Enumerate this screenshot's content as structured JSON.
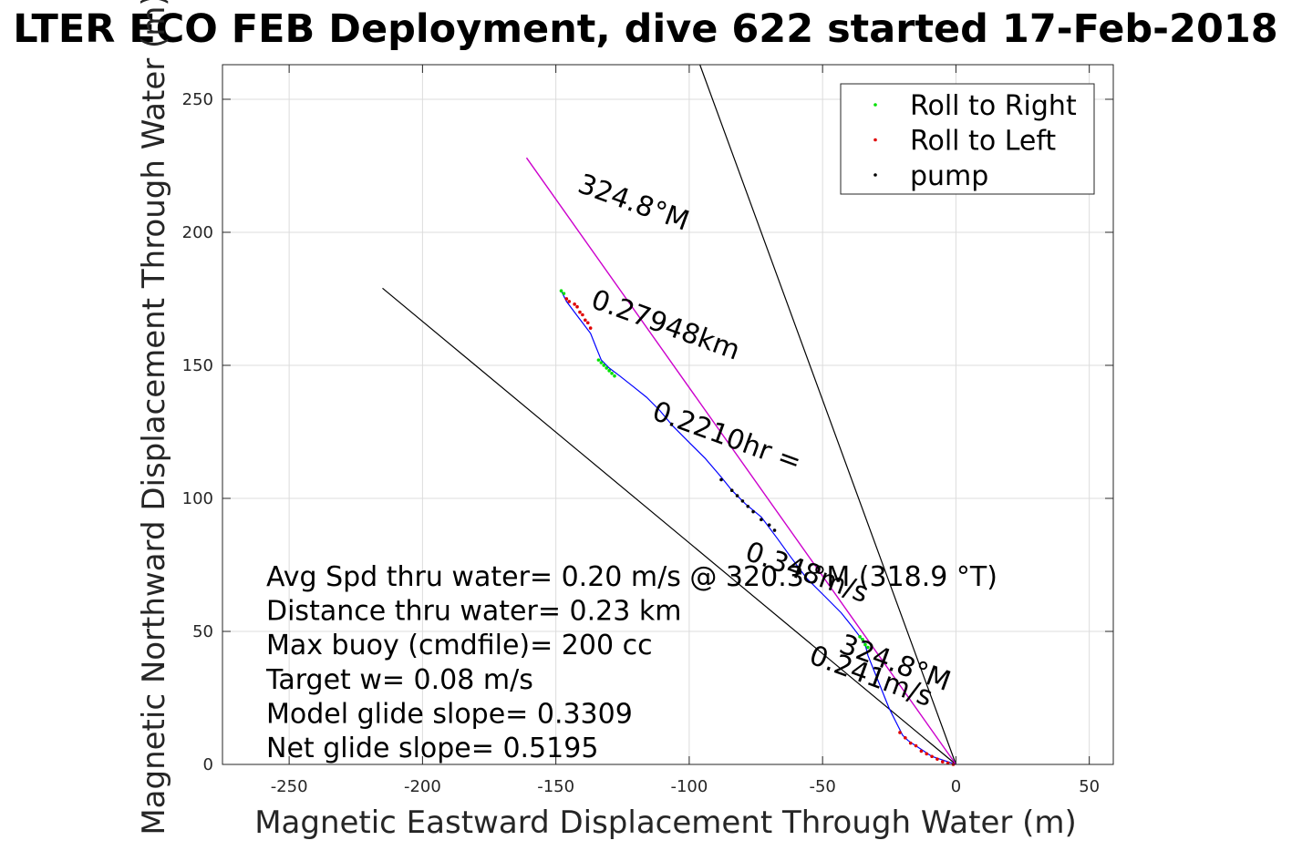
{
  "chart_data": {
    "type": "scatter",
    "title": "LTER ECO FEB Deployment, dive 622 started 17-Feb-2018",
    "xlabel": "Magnetic Eastward Displacement Through Water (m)",
    "ylabel": "Magnetic Northward Displacement Through Water (m)",
    "xlim": [
      -275,
      59
    ],
    "ylim": [
      0,
      263
    ],
    "xticks": [
      -250,
      -200,
      -150,
      -100,
      -50,
      0,
      50
    ],
    "yticks": [
      0,
      50,
      100,
      150,
      200,
      250
    ],
    "grid": true,
    "legend_position": "top-right",
    "legend": [
      {
        "label": "Roll to Right",
        "color": "#00e000"
      },
      {
        "label": "Roll to Left",
        "color": "#e00000"
      },
      {
        "label": "pump",
        "color": "#000000"
      }
    ],
    "track_color": "#0000ff",
    "track": [
      [
        0,
        0
      ],
      [
        -3,
        1
      ],
      [
        -6,
        2
      ],
      [
        -9,
        3
      ],
      [
        -12,
        5
      ],
      [
        -15,
        7
      ],
      [
        -18,
        9
      ],
      [
        -20,
        11
      ],
      [
        -21,
        13
      ],
      [
        -23,
        17
      ],
      [
        -25,
        21
      ],
      [
        -27,
        26
      ],
      [
        -29,
        31
      ],
      [
        -31,
        36
      ],
      [
        -33,
        41
      ],
      [
        -34,
        45
      ],
      [
        -36,
        48
      ],
      [
        -39,
        52
      ],
      [
        -43,
        57
      ],
      [
        -49,
        63
      ],
      [
        -56,
        70
      ],
      [
        -62,
        78
      ],
      [
        -67,
        85
      ],
      [
        -73,
        93
      ],
      [
        -79,
        98
      ],
      [
        -84,
        103
      ],
      [
        -88,
        108
      ],
      [
        -94,
        115
      ],
      [
        -100,
        121
      ],
      [
        -106,
        127
      ],
      [
        -111,
        133
      ],
      [
        -116,
        138
      ],
      [
        -121,
        142
      ],
      [
        -126,
        146
      ],
      [
        -130,
        149
      ],
      [
        -133,
        152
      ],
      [
        -135,
        157
      ],
      [
        -137,
        162
      ],
      [
        -140,
        166
      ],
      [
        -143,
        170
      ],
      [
        -146,
        174
      ],
      [
        -148,
        178
      ]
    ],
    "roll_right_points": [
      [
        -148,
        178
      ],
      [
        -147,
        177
      ],
      [
        -134,
        152
      ],
      [
        -133,
        151
      ],
      [
        -132,
        150
      ],
      [
        -131,
        149
      ],
      [
        -130,
        148
      ],
      [
        -129,
        147
      ],
      [
        -128,
        146
      ],
      [
        -36,
        48
      ],
      [
        -35,
        47
      ],
      [
        -34,
        45
      ],
      [
        -33,
        44
      ]
    ],
    "roll_left_points": [
      [
        -146,
        175
      ],
      [
        -145,
        174
      ],
      [
        -143,
        173
      ],
      [
        -142,
        172
      ],
      [
        -141,
        170
      ],
      [
        -140,
        169
      ],
      [
        -139,
        167
      ],
      [
        -138,
        166
      ],
      [
        -137,
        164
      ],
      [
        -21,
        12
      ],
      [
        -19,
        10
      ],
      [
        -17,
        8
      ],
      [
        -15,
        7
      ],
      [
        -13,
        5
      ],
      [
        -11,
        4
      ],
      [
        -9,
        3
      ],
      [
        -7,
        2
      ],
      [
        -5,
        1
      ],
      [
        -3,
        0.5
      ],
      [
        -1,
        0
      ]
    ],
    "pump_points": [
      [
        -88,
        107
      ],
      [
        -84,
        103
      ],
      [
        -82,
        101
      ],
      [
        -80,
        99
      ],
      [
        -78,
        97
      ],
      [
        -76,
        95
      ],
      [
        -73,
        92
      ],
      [
        -70,
        90
      ],
      [
        -68,
        88
      ]
    ],
    "heading_line": {
      "from": [
        0,
        0
      ],
      "to": [
        -161,
        228
      ],
      "color": "#cc00cc"
    },
    "guide_lines": [
      {
        "from": [
          0,
          0
        ],
        "to": [
          -96,
          263
        ]
      },
      {
        "from": [
          0,
          0
        ],
        "to": [
          -215,
          179
        ]
      }
    ],
    "rotated_labels": [
      {
        "text": "324.8°M",
        "at": [
          -122,
          208
        ],
        "angle_deg": 125
      },
      {
        "text": "0.27948km",
        "at": [
          -110,
          162
        ],
        "angle_deg": 125
      },
      {
        "text": "0.2210hr =",
        "at": [
          -87,
          120
        ],
        "angle_deg": 125
      },
      {
        "text": "0.348m/s",
        "at": [
          -57,
          69
        ],
        "angle_deg": 125
      },
      {
        "text": "324.8°M",
        "at": [
          -24,
          35
        ],
        "angle_deg": 125
      },
      {
        "text": "0.241m/s",
        "at": [
          -33,
          30
        ],
        "angle_deg": 125
      }
    ],
    "annotations": [
      "Avg Spd thru water=  0.20 m/s @ 320.3 °M (318.9 °T)",
      "Distance thru water=  0.23 km",
      "Max buoy (cmdfile)= 200 cc",
      "Target w= 0.08 m/s",
      "Model glide slope= 0.3309",
      "Net glide slope= 0.5195"
    ]
  }
}
